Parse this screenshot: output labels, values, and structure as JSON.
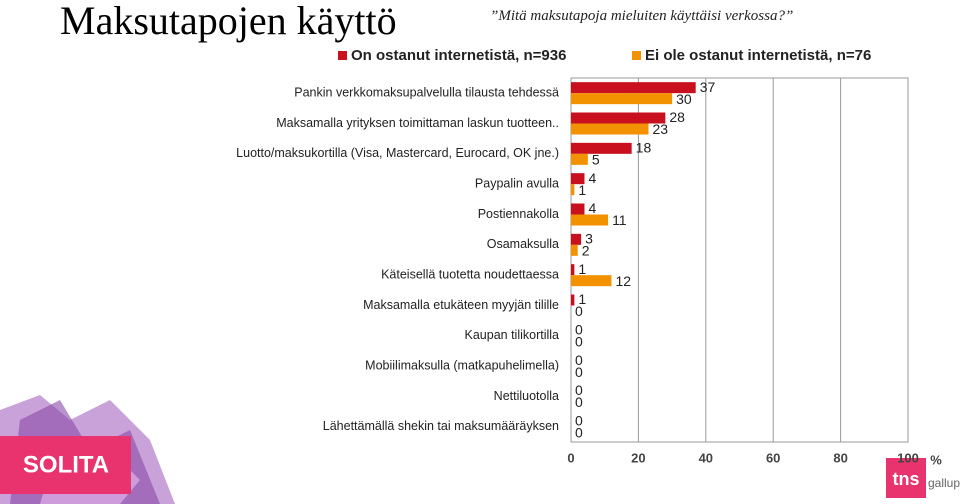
{
  "slide": {
    "title": "Maksutapojen käyttö",
    "subtitle": "”Mitä maksutapoja mieluiten käyttäisi verkossa?”"
  },
  "logos": {
    "left": "SOLITA",
    "right": "tns",
    "right_sub": "gallup"
  },
  "chart_data": {
    "type": "hbar",
    "categories": [
      "Pankin verkkomaksupalvelulla tilausta tehdessä",
      "Maksamalla yrityksen toimittaman laskun tuotteen..",
      "Luotto/maksukortilla (Visa, Mastercard, Eurocard, OK jne.)",
      "Paypalin avulla",
      "Postiennakolla",
      "Osamaksulla",
      "Käteisellä tuotetta noudettaessa",
      "Maksamalla etukäteen myyjän tilille",
      "Kaupan tilikortilla",
      "Mobiilimaksulla (matkapuhelimella)",
      "Nettiluotolla",
      "Lähettämällä shekin tai maksumääräyksen"
    ],
    "series": [
      {
        "name": "On ostanut internetistä, n=936",
        "color": "#c8101e",
        "values": [
          37,
          28,
          18,
          4,
          4,
          3,
          1,
          1,
          0,
          0,
          0,
          0
        ]
      },
      {
        "name": "Ei ole ostanut internetistä, n=76",
        "color": "#f39200",
        "values": [
          30,
          23,
          5,
          1,
          11,
          2,
          12,
          0,
          0,
          0,
          0,
          0
        ]
      }
    ],
    "xlim": [
      0,
      100
    ],
    "xticks": [
      0,
      20,
      40,
      60,
      80,
      100
    ],
    "x_label": "%",
    "grid": true
  }
}
